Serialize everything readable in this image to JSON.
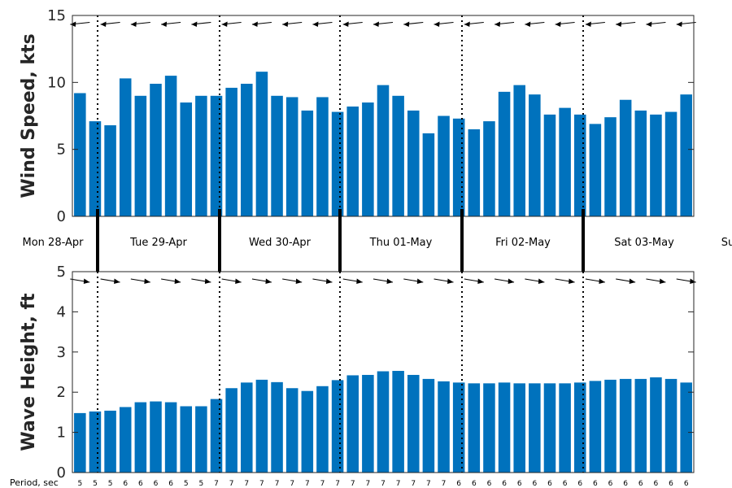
{
  "chart_data": [
    {
      "type": "bar",
      "ylabel": "Wind Speed, kts",
      "ylim": [
        0,
        15
      ],
      "yticks": [
        "0",
        "5",
        "10",
        "15"
      ],
      "color": "#0072bd",
      "values": [
        9.2,
        7.1,
        6.8,
        10.3,
        9.0,
        9.9,
        10.5,
        8.5,
        9.0,
        9.0,
        9.6,
        9.9,
        10.8,
        9.0,
        8.9,
        7.9,
        8.9,
        7.8,
        8.2,
        8.5,
        9.8,
        9.0,
        7.9,
        6.2,
        7.5,
        7.3,
        6.5,
        7.1,
        9.3,
        9.8,
        9.1,
        7.6,
        8.1,
        7.6,
        6.9,
        7.4,
        8.7,
        7.9,
        7.6,
        7.8,
        9.1
      ],
      "arrows": "westward-pointing wind direction arrows above every bar"
    },
    {
      "type": "bar",
      "ylabel": "Wave Height, ft",
      "ylim": [
        0,
        5
      ],
      "yticks": [
        "0",
        "1",
        "2",
        "3",
        "4",
        "5"
      ],
      "color": "#0072bd",
      "values": [
        1.48,
        1.52,
        1.54,
        1.63,
        1.75,
        1.77,
        1.75,
        1.65,
        1.65,
        1.83,
        2.1,
        2.24,
        2.31,
        2.25,
        2.1,
        2.03,
        2.15,
        2.3,
        2.42,
        2.43,
        2.52,
        2.53,
        2.43,
        2.33,
        2.27,
        2.24,
        2.22,
        2.22,
        2.24,
        2.22,
        2.22,
        2.22,
        2.22,
        2.24,
        2.28,
        2.31,
        2.33,
        2.33,
        2.37,
        2.33,
        2.24
      ],
      "arrows": "eastward-pointing wave direction arrows above every bar"
    }
  ],
  "days": [
    "Mon 28-Apr",
    "Tue 29-Apr",
    "Wed 30-Apr",
    "Thu 01-May",
    "Fri 02-May",
    "Sat 03-May",
    "Su"
  ],
  "period": {
    "label": "Period, sec",
    "values": [
      "5",
      "5",
      "5",
      "6",
      "6",
      "6",
      "6",
      "5",
      "5",
      "7",
      "7",
      "7",
      "7",
      "7",
      "7",
      "7",
      "7",
      "7",
      "7",
      "7",
      "7",
      "7",
      "7",
      "7",
      "7",
      "6",
      "6",
      "6",
      "6",
      "6",
      "6",
      "6",
      "6",
      "6",
      "6",
      "6",
      "6",
      "6",
      "6",
      "6",
      "6"
    ]
  }
}
